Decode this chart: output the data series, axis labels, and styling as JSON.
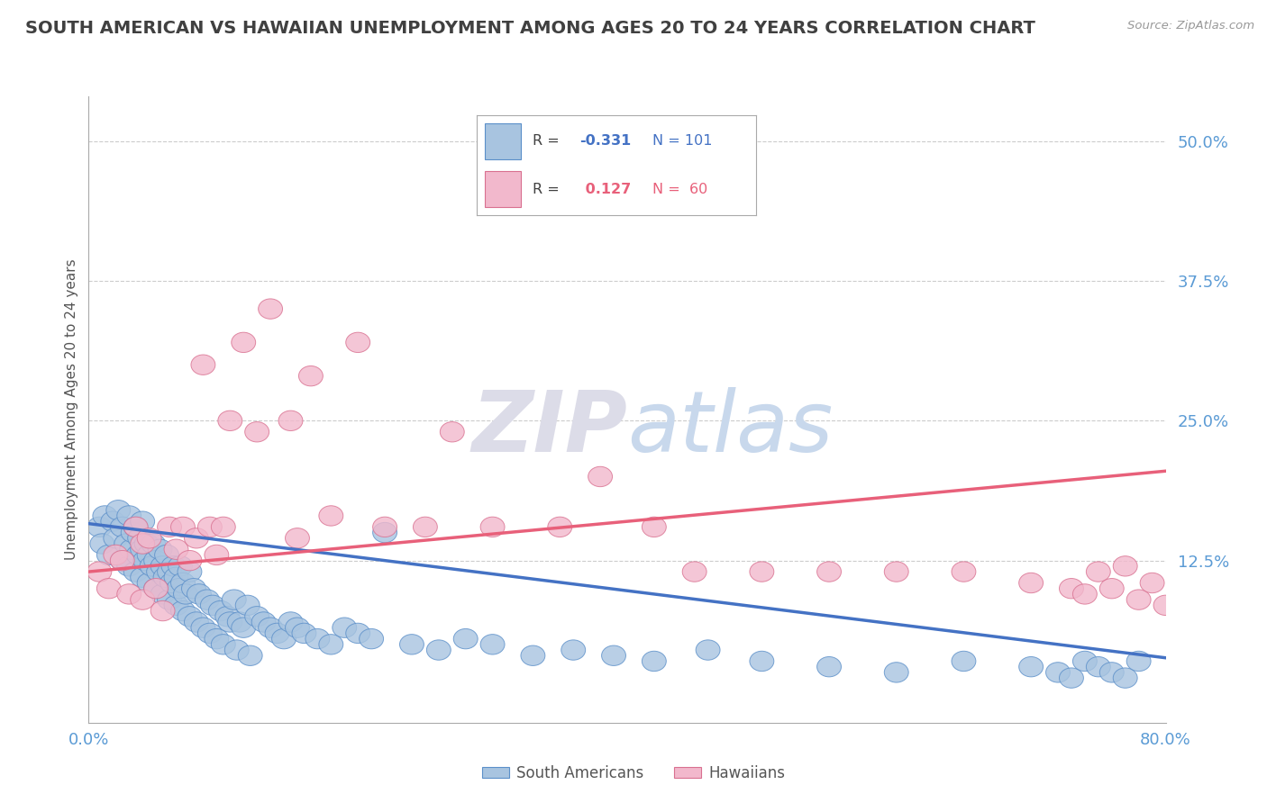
{
  "title": "SOUTH AMERICAN VS HAWAIIAN UNEMPLOYMENT AMONG AGES 20 TO 24 YEARS CORRELATION CHART",
  "source": "Source: ZipAtlas.com",
  "xlim": [
    0.0,
    0.8
  ],
  "ylim": [
    -0.02,
    0.54
  ],
  "yticks": [
    0.0,
    0.125,
    0.25,
    0.375,
    0.5
  ],
  "ytick_labels": [
    "",
    "12.5%",
    "25.0%",
    "37.5%",
    "50.0%"
  ],
  "xtick_labels": [
    "0.0%",
    "80.0%"
  ],
  "xtick_positions": [
    0.0,
    0.8
  ],
  "blue_color": "#A8C4E0",
  "blue_edge_color": "#5B8FC9",
  "pink_color": "#F2B8CC",
  "pink_edge_color": "#D97090",
  "blue_line_color": "#4472C4",
  "pink_line_color": "#E8607A",
  "grid_color": "#CCCCCC",
  "axis_label_color": "#5B9BD5",
  "title_color": "#404040",
  "legend_blue_r": "-0.331",
  "legend_blue_n": "101",
  "legend_pink_r": "0.127",
  "legend_pink_n": "60",
  "ylabel": "Unemployment Among Ages 20 to 24 years",
  "watermark_zip_color": "#D8D8E8",
  "watermark_atlas_color": "#C8D4E8",
  "blue_x": [
    0.008,
    0.01,
    0.012,
    0.015,
    0.018,
    0.02,
    0.022,
    0.025,
    0.025,
    0.028,
    0.03,
    0.03,
    0.032,
    0.033,
    0.035,
    0.035,
    0.037,
    0.038,
    0.04,
    0.04,
    0.04,
    0.042,
    0.043,
    0.045,
    0.045,
    0.047,
    0.048,
    0.05,
    0.05,
    0.052,
    0.053,
    0.055,
    0.055,
    0.057,
    0.058,
    0.06,
    0.06,
    0.062,
    0.063,
    0.065,
    0.065,
    0.067,
    0.068,
    0.07,
    0.07,
    0.072,
    0.075,
    0.075,
    0.078,
    0.08,
    0.082,
    0.085,
    0.088,
    0.09,
    0.092,
    0.095,
    0.098,
    0.1,
    0.103,
    0.105,
    0.108,
    0.11,
    0.112,
    0.115,
    0.118,
    0.12,
    0.125,
    0.13,
    0.135,
    0.14,
    0.145,
    0.15,
    0.155,
    0.16,
    0.17,
    0.18,
    0.19,
    0.2,
    0.21,
    0.22,
    0.24,
    0.26,
    0.28,
    0.3,
    0.33,
    0.36,
    0.39,
    0.42,
    0.46,
    0.5,
    0.55,
    0.6,
    0.65,
    0.7,
    0.72,
    0.73,
    0.74,
    0.75,
    0.76,
    0.77,
    0.78
  ],
  "blue_y": [
    0.155,
    0.14,
    0.165,
    0.13,
    0.16,
    0.145,
    0.17,
    0.125,
    0.155,
    0.14,
    0.12,
    0.165,
    0.135,
    0.15,
    0.115,
    0.155,
    0.13,
    0.145,
    0.11,
    0.135,
    0.16,
    0.125,
    0.14,
    0.105,
    0.13,
    0.12,
    0.14,
    0.1,
    0.125,
    0.115,
    0.135,
    0.095,
    0.12,
    0.11,
    0.13,
    0.09,
    0.115,
    0.105,
    0.12,
    0.085,
    0.11,
    0.1,
    0.12,
    0.08,
    0.105,
    0.095,
    0.115,
    0.075,
    0.1,
    0.07,
    0.095,
    0.065,
    0.09,
    0.06,
    0.085,
    0.055,
    0.08,
    0.05,
    0.075,
    0.07,
    0.09,
    0.045,
    0.07,
    0.065,
    0.085,
    0.04,
    0.075,
    0.07,
    0.065,
    0.06,
    0.055,
    0.07,
    0.065,
    0.06,
    0.055,
    0.05,
    0.065,
    0.06,
    0.055,
    0.15,
    0.05,
    0.045,
    0.055,
    0.05,
    0.04,
    0.045,
    0.04,
    0.035,
    0.045,
    0.035,
    0.03,
    0.025,
    0.035,
    0.03,
    0.025,
    0.02,
    0.035,
    0.03,
    0.025,
    0.02,
    0.035
  ],
  "pink_x": [
    0.008,
    0.015,
    0.02,
    0.025,
    0.03,
    0.035,
    0.04,
    0.04,
    0.045,
    0.05,
    0.055,
    0.06,
    0.065,
    0.07,
    0.075,
    0.08,
    0.085,
    0.09,
    0.095,
    0.1,
    0.105,
    0.115,
    0.125,
    0.135,
    0.15,
    0.155,
    0.165,
    0.18,
    0.2,
    0.22,
    0.25,
    0.27,
    0.3,
    0.35,
    0.38,
    0.42,
    0.45,
    0.5,
    0.55,
    0.6,
    0.65,
    0.7,
    0.73,
    0.74,
    0.75,
    0.76,
    0.77,
    0.78,
    0.79,
    0.8
  ],
  "pink_y": [
    0.115,
    0.1,
    0.13,
    0.125,
    0.095,
    0.155,
    0.14,
    0.09,
    0.145,
    0.1,
    0.08,
    0.155,
    0.135,
    0.155,
    0.125,
    0.145,
    0.3,
    0.155,
    0.13,
    0.155,
    0.25,
    0.32,
    0.24,
    0.35,
    0.25,
    0.145,
    0.29,
    0.165,
    0.32,
    0.155,
    0.155,
    0.24,
    0.155,
    0.155,
    0.2,
    0.155,
    0.115,
    0.115,
    0.115,
    0.115,
    0.115,
    0.105,
    0.1,
    0.095,
    0.115,
    0.1,
    0.12,
    0.09,
    0.105,
    0.085
  ],
  "blue_trend_x": [
    0.0,
    0.8
  ],
  "blue_trend_y": [
    0.158,
    0.038
  ],
  "pink_trend_x": [
    0.0,
    0.8
  ],
  "pink_trend_y": [
    0.115,
    0.205
  ]
}
